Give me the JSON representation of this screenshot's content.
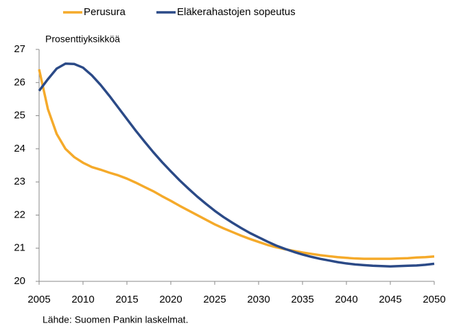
{
  "chart_data": {
    "type": "line",
    "y_axis_label": "Prosenttiyksikköä",
    "source": "Lähde: Suomen Pankin laskelmat.",
    "x": [
      2005,
      2006,
      2007,
      2008,
      2009,
      2010,
      2011,
      2012,
      2013,
      2014,
      2015,
      2016,
      2017,
      2018,
      2019,
      2020,
      2021,
      2022,
      2023,
      2024,
      2025,
      2026,
      2027,
      2028,
      2029,
      2030,
      2031,
      2032,
      2033,
      2034,
      2035,
      2036,
      2037,
      2038,
      2039,
      2040,
      2041,
      2042,
      2043,
      2044,
      2045,
      2046,
      2047,
      2048,
      2049,
      2050
    ],
    "series": [
      {
        "name": "Perusura",
        "color": "#f5aa2a",
        "values": [
          26.4,
          25.2,
          24.45,
          24.0,
          23.75,
          23.58,
          23.45,
          23.37,
          23.28,
          23.2,
          23.1,
          22.98,
          22.85,
          22.72,
          22.57,
          22.43,
          22.28,
          22.14,
          22.0,
          21.86,
          21.72,
          21.6,
          21.49,
          21.38,
          21.28,
          21.19,
          21.1,
          21.03,
          20.97,
          20.92,
          20.87,
          20.83,
          20.79,
          20.76,
          20.73,
          20.71,
          20.69,
          20.68,
          20.68,
          20.68,
          20.68,
          20.69,
          20.7,
          20.72,
          20.73,
          20.75
        ]
      },
      {
        "name": "Eläkerahastojen sopeutus",
        "color": "#2b4a87",
        "values": [
          25.75,
          26.1,
          26.42,
          26.57,
          26.56,
          26.45,
          26.22,
          25.93,
          25.6,
          25.25,
          24.9,
          24.55,
          24.22,
          23.9,
          23.6,
          23.32,
          23.05,
          22.8,
          22.56,
          22.34,
          22.13,
          21.94,
          21.77,
          21.61,
          21.46,
          21.33,
          21.2,
          21.08,
          20.98,
          20.89,
          20.81,
          20.74,
          20.68,
          20.63,
          20.58,
          20.54,
          20.51,
          20.49,
          20.47,
          20.46,
          20.45,
          20.46,
          20.47,
          20.48,
          20.5,
          20.53
        ]
      }
    ],
    "xlim": [
      2005,
      2050
    ],
    "xticks": [
      2005,
      2010,
      2015,
      2020,
      2025,
      2030,
      2035,
      2040,
      2045,
      2050
    ],
    "ylim": [
      20,
      27
    ],
    "yticks": [
      20,
      21,
      22,
      23,
      24,
      25,
      26,
      27
    ],
    "grid": false,
    "legend": "top"
  }
}
